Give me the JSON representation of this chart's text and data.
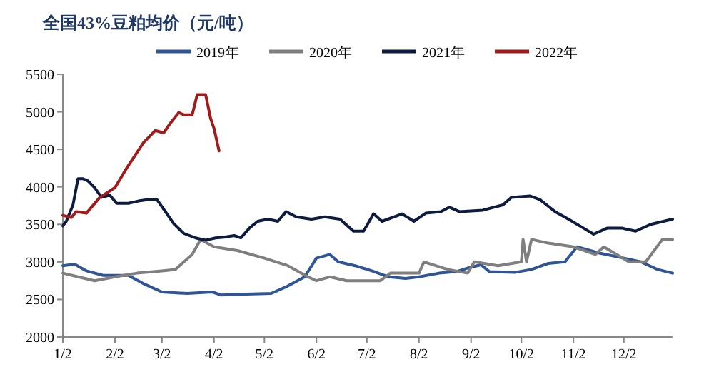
{
  "chart_data": {
    "type": "line",
    "title": "全国43%豆粕均价（元/吨）",
    "legend": "top",
    "grid": false,
    "marker": "none",
    "line_style": "solid",
    "xlim": [
      "--01-02",
      "--12-31"
    ],
    "ylim": [
      2000,
      5500
    ],
    "yticks": [
      2000,
      2500,
      3000,
      3500,
      4000,
      4500,
      5000,
      5500
    ],
    "xticks": [
      {
        "value": "--01-02",
        "label": "1/2"
      },
      {
        "value": "--02-02",
        "label": "2/2"
      },
      {
        "value": "--03-02",
        "label": "3/2"
      },
      {
        "value": "--04-02",
        "label": "4/2"
      },
      {
        "value": "--05-02",
        "label": "5/2"
      },
      {
        "value": "--06-02",
        "label": "6/2"
      },
      {
        "value": "--07-02",
        "label": "7/2"
      },
      {
        "value": "--08-02",
        "label": "8/2"
      },
      {
        "value": "--09-02",
        "label": "9/2"
      },
      {
        "value": "--10-02",
        "label": "10/2"
      },
      {
        "value": "--11-02",
        "label": "11/2"
      },
      {
        "value": "--12-02",
        "label": "12/2"
      }
    ],
    "series": [
      {
        "name": "2019年",
        "color": "#2f5597",
        "x": [
          "--01-02",
          "--01-09",
          "--01-16",
          "--01-26",
          "--02-10",
          "--02-20",
          "--03-02",
          "--03-17",
          "--04-01",
          "--04-06",
          "--04-21",
          "--05-06",
          "--05-16",
          "--05-26",
          "--06-02",
          "--06-10",
          "--06-15",
          "--06-25",
          "--07-05",
          "--07-15",
          "--07-25",
          "--08-02",
          "--08-14",
          "--08-24",
          "--09-02",
          "--09-08",
          "--09-13",
          "--09-28",
          "--10-08",
          "--10-18",
          "--10-28",
          "--11-04",
          "--11-17",
          "--12-02",
          "--12-12",
          "--12-22",
          "--12-31"
        ],
        "values": [
          2950,
          2970,
          2880,
          2820,
          2820,
          2700,
          2600,
          2580,
          2600,
          2560,
          2570,
          2580,
          2680,
          2800,
          3050,
          3100,
          3000,
          2950,
          2880,
          2800,
          2780,
          2800,
          2850,
          2870,
          2930,
          2960,
          2870,
          2860,
          2900,
          2980,
          3000,
          3200,
          3120,
          3050,
          3000,
          2900,
          2850
        ]
      },
      {
        "name": "2020年",
        "color": "#7f7f7f",
        "x": [
          "--01-02",
          "--01-11",
          "--01-21",
          "--02-02",
          "--02-15",
          "--03-02",
          "--03-10",
          "--03-20",
          "--03-25",
          "--04-02",
          "--04-16",
          "--05-02",
          "--05-16",
          "--05-28",
          "--06-02",
          "--06-10",
          "--06-20",
          "--07-10",
          "--07-16",
          "--08-02",
          "--08-05",
          "--08-19",
          "--08-31",
          "--09-04",
          "--09-18",
          "--10-02",
          "--10-03",
          "--10-05",
          "--10-08",
          "--10-18",
          "--11-02",
          "--11-15",
          "--11-20",
          "--12-05",
          "--12-15",
          "--12-25",
          "--12-31"
        ],
        "values": [
          2850,
          2800,
          2750,
          2800,
          2850,
          2880,
          2900,
          3100,
          3300,
          3200,
          3150,
          3050,
          2950,
          2800,
          2750,
          2800,
          2750,
          2750,
          2850,
          2850,
          3000,
          2900,
          2850,
          3000,
          2950,
          3000,
          3300,
          3000,
          3300,
          3250,
          3200,
          3100,
          3200,
          3000,
          3000,
          3300,
          3300
        ]
      },
      {
        "name": "2021年",
        "color": "#0d1b3e",
        "x": [
          "--01-02",
          "--01-04",
          "--01-08",
          "--01-11",
          "--01-14",
          "--01-17",
          "--01-21",
          "--01-25",
          "--01-30",
          "--02-03",
          "--02-10",
          "--02-16",
          "--02-22",
          "--02-27",
          "--03-04",
          "--03-09",
          "--03-15",
          "--03-22",
          "--03-28",
          "--04-03",
          "--04-08",
          "--04-14",
          "--04-18",
          "--04-23",
          "--04-28",
          "--05-04",
          "--05-10",
          "--05-15",
          "--05-21",
          "--05-30",
          "--06-07",
          "--06-16",
          "--06-24",
          "--06-30",
          "--07-06",
          "--07-11",
          "--07-23",
          "--07-30",
          "--08-06",
          "--08-15",
          "--08-20",
          "--08-26",
          "--09-09",
          "--09-21",
          "--09-26",
          "--10-07",
          "--10-13",
          "--10-22",
          "--10-30",
          "--11-08",
          "--11-14",
          "--11-22",
          "--12-01",
          "--12-09",
          "--12-18",
          "--12-31"
        ],
        "values": [
          3480,
          3540,
          3760,
          4110,
          4110,
          4080,
          3990,
          3860,
          3890,
          3780,
          3780,
          3810,
          3830,
          3830,
          3670,
          3510,
          3380,
          3320,
          3290,
          3320,
          3330,
          3350,
          3320,
          3450,
          3540,
          3570,
          3540,
          3670,
          3600,
          3570,
          3600,
          3570,
          3410,
          3410,
          3640,
          3540,
          3640,
          3540,
          3650,
          3670,
          3730,
          3670,
          3690,
          3760,
          3860,
          3880,
          3830,
          3670,
          3570,
          3450,
          3370,
          3450,
          3450,
          3410,
          3500,
          3570
        ]
      },
      {
        "name": "2022年",
        "color": "#a01c1c",
        "x": [
          "--01-02",
          "--01-07",
          "--01-10",
          "--01-16",
          "--01-24",
          "--02-02",
          "--02-09",
          "--02-19",
          "--02-26",
          "--03-03",
          "--03-07",
          "--03-12",
          "--03-15",
          "--03-20",
          "--03-23",
          "--03-28",
          "--03-31",
          "--04-02",
          "--04-05"
        ],
        "values": [
          3620,
          3590,
          3670,
          3650,
          3860,
          3990,
          4250,
          4590,
          4750,
          4720,
          4850,
          4990,
          4960,
          4960,
          5230,
          5230,
          4910,
          4780,
          4480
        ]
      }
    ]
  }
}
